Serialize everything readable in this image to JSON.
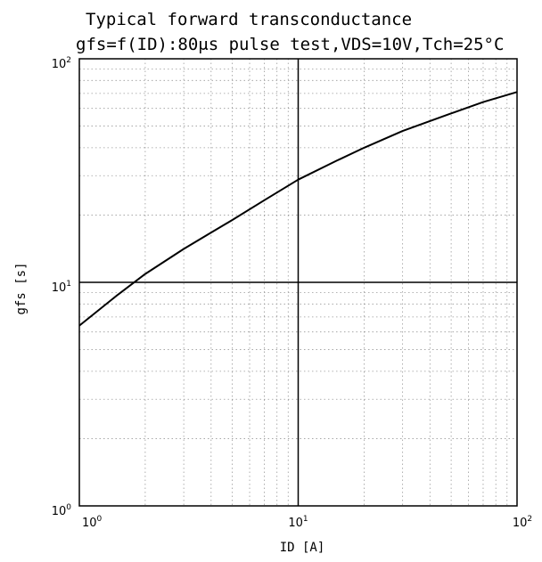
{
  "chart_data": {
    "type": "line",
    "title": "Typical forward transconductance",
    "subtitle": "gfs=f(ID):80μs pulse test,VDS=10V,Tch=25°C",
    "xlabel": "ID [A]",
    "ylabel": "gfs [s]",
    "xscale": "log",
    "yscale": "log",
    "xlim": [
      1,
      100
    ],
    "ylim": [
      1,
      100
    ],
    "grid": true,
    "legend": "none",
    "x_ticks": [
      {
        "base": "10",
        "exp": "0",
        "value": 1
      },
      {
        "base": "10",
        "exp": "1",
        "value": 10
      },
      {
        "base": "10",
        "exp": "2",
        "value": 100
      }
    ],
    "y_ticks": [
      {
        "base": "10",
        "exp": "0",
        "value": 1
      },
      {
        "base": "10",
        "exp": "1",
        "value": 10
      },
      {
        "base": "10",
        "exp": "2",
        "value": 100
      }
    ],
    "series": [
      {
        "x": [
          1,
          1.5,
          2,
          3,
          4,
          5,
          7,
          10,
          15,
          20,
          30,
          50,
          70,
          100
        ],
        "y": [
          6.4,
          8.8,
          10.9,
          14.1,
          16.7,
          19.0,
          23.3,
          28.8,
          35.0,
          40.0,
          47.5,
          57.0,
          64.0,
          71.0
        ],
        "color": "#000000"
      }
    ]
  }
}
